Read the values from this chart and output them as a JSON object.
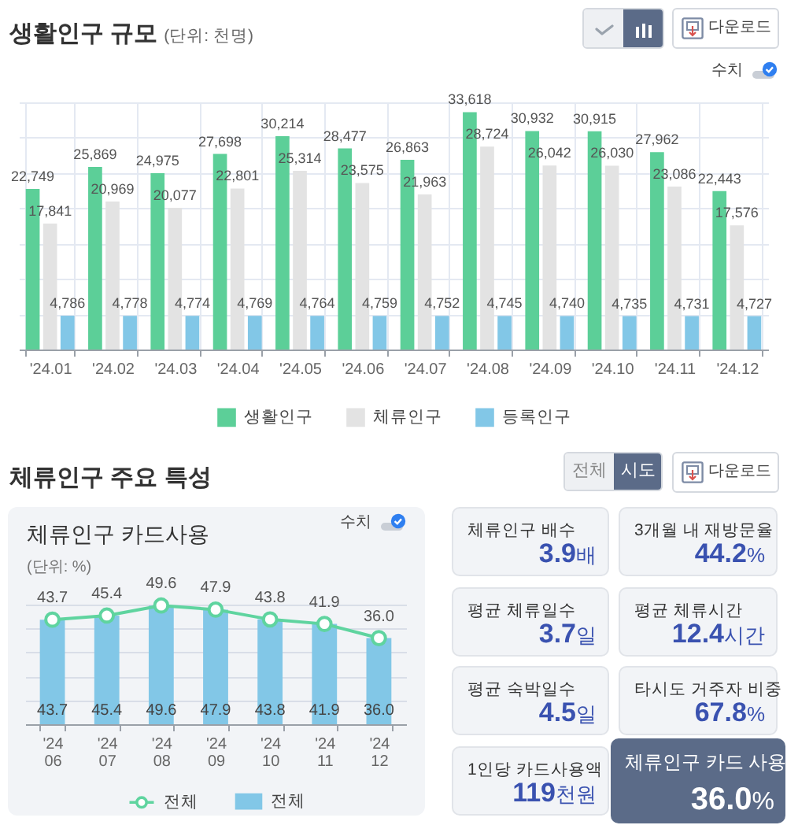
{
  "chart_data": [
    {
      "type": "bar",
      "title": "생활인구 규모",
      "subtitle": "(단위: 천명)",
      "categories": [
        "'24.01",
        "'24.02",
        "'24.03",
        "'24.04",
        "'24.05",
        "'24.06",
        "'24.07",
        "'24.08",
        "'24.09",
        "'24.10",
        "'24.11",
        "'24.12"
      ],
      "series": [
        {
          "name": "생활인구",
          "color": "#5ccf98",
          "values": [
            22749,
            25869,
            24975,
            27698,
            30214,
            28477,
            26863,
            33618,
            30932,
            30915,
            27962,
            22443
          ],
          "value_labels": [
            "22,749",
            "25,869",
            "24,975",
            "27,698",
            "30,214",
            "28,477",
            "26,863",
            "33,618",
            "30,932",
            "30,915",
            "27,962",
            "22,443"
          ]
        },
        {
          "name": "체류인구",
          "color": "#e3e3e3",
          "values": [
            17841,
            20969,
            20077,
            22801,
            25314,
            23575,
            21963,
            28724,
            26042,
            26030,
            23086,
            17576
          ],
          "value_labels": [
            "17,841",
            "20,969",
            "20,077",
            "22,801",
            "25,314",
            "23,575",
            "21,963",
            "28,724",
            "26,042",
            "26,030",
            "23,086",
            "17,576"
          ]
        },
        {
          "name": "등록인구",
          "color": "#82c7e7",
          "values": [
            4786,
            4778,
            4774,
            4769,
            4764,
            4759,
            4752,
            4745,
            4740,
            4735,
            4731,
            4727
          ],
          "value_labels": [
            "4,786",
            "4,778",
            "4,774",
            "4,769",
            "4,764",
            "4,759",
            "4,752",
            "4,745",
            "4,740",
            "4,735",
            "4,731",
            "4,727"
          ]
        }
      ],
      "grid": true,
      "tick_labels": "x",
      "legend": "bottom",
      "annotations": [
        "다운로드",
        "수치"
      ]
    },
    {
      "type": "bar",
      "title": "체류인구 카드사용",
      "subtitle": "(단위: %)",
      "categories": [
        "'24\n06",
        "'24\n07",
        "'24\n08",
        "'24\n09",
        "'24\n10",
        "'24\n11",
        "'24\n12"
      ],
      "series": [
        {
          "name": "전체",
          "type": "line",
          "color": "#5fd49f",
          "values": [
            43.7,
            45.4,
            49.6,
            47.9,
            43.8,
            41.9,
            36.0
          ],
          "value_labels": [
            "43.7",
            "45.4",
            "49.6",
            "47.9",
            "43.8",
            "41.9",
            "36.0"
          ]
        },
        {
          "name": "전체",
          "type": "bar",
          "color": "#82c7e7",
          "values": [
            43.7,
            45.4,
            49.6,
            47.9,
            43.8,
            41.9,
            36.0
          ],
          "value_labels": [
            "43.7",
            "45.4",
            "49.6",
            "47.9",
            "43.8",
            "41.9",
            "36.0"
          ]
        }
      ],
      "grid": "y",
      "tick_labels": "x",
      "legend": "bottom",
      "marker": "circle",
      "annotations": [
        "수치"
      ]
    },
    {
      "type": "other",
      "title": "체류인구 주요 특성",
      "categories": [
        "체류인구 배수",
        "3개월 내 재방문율",
        "평균 체류일수",
        "평균 체류시간",
        "평균 숙박일수",
        "타시도 거주자 비중",
        "1인당 카드사용액",
        "체류인구 카드 사용"
      ],
      "value_labels": [
        "3.9배",
        "44.2%",
        "3.7일",
        "12.4시간",
        "4.5일",
        "67.8%",
        "119천원",
        "36.0%"
      ],
      "annotations": [
        "전체",
        "시도",
        "다운로드"
      ]
    }
  ]
}
